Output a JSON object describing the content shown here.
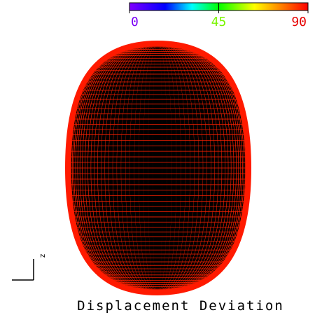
{
  "colorbar": {
    "range": [
      0,
      90
    ],
    "ticks": [
      0,
      45,
      90
    ]
  },
  "axis_label": "z",
  "title": "Displacement Deviation"
}
